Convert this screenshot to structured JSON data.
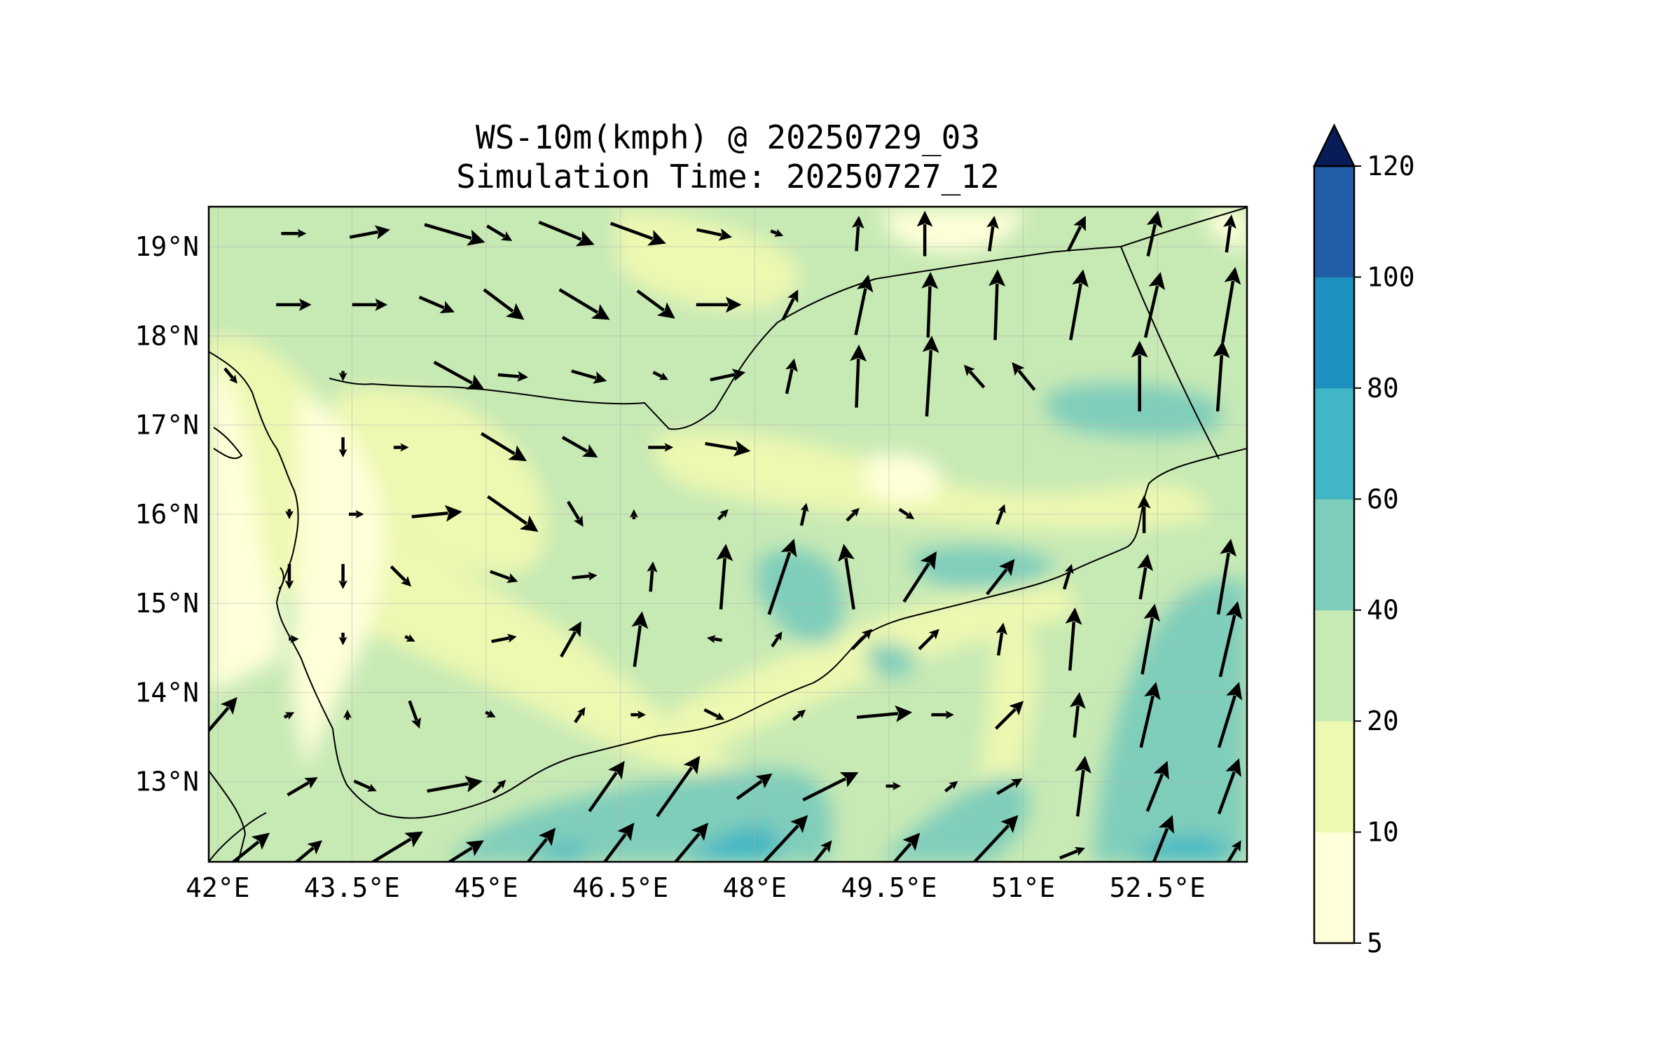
{
  "title": {
    "line1": "WS-10m(kmph) @ 20250729_03",
    "line2": "Simulation Time: 20250727_12"
  },
  "chart_data": {
    "type": "heatmap",
    "title": "WS-10m(kmph) @ 20250729_03",
    "subtitle": "Simulation Time: 20250727_12",
    "x_axis": {
      "range": [
        41.9,
        53.5
      ],
      "ticks": [
        {
          "value": 42,
          "label": "42°E"
        },
        {
          "value": 43.5,
          "label": "43.5°E"
        },
        {
          "value": 45,
          "label": "45°E"
        },
        {
          "value": 46.5,
          "label": "46.5°E"
        },
        {
          "value": 48,
          "label": "48°E"
        },
        {
          "value": 49.5,
          "label": "49.5°E"
        },
        {
          "value": 51,
          "label": "51°E"
        },
        {
          "value": 52.5,
          "label": "52.5°E"
        }
      ]
    },
    "y_axis": {
      "range": [
        12.1,
        19.45
      ],
      "ticks": [
        {
          "value": 13,
          "label": "13°N"
        },
        {
          "value": 14,
          "label": "14°N"
        },
        {
          "value": 15,
          "label": "15°N"
        },
        {
          "value": 16,
          "label": "16°N"
        },
        {
          "value": 17,
          "label": "17°N"
        },
        {
          "value": 18,
          "label": "18°N"
        },
        {
          "value": 19,
          "label": "19°N"
        }
      ]
    },
    "grid": true,
    "colorbar": {
      "placement": "right",
      "extend": "max",
      "levels": [
        5,
        10,
        20,
        40,
        60,
        80,
        100,
        120
      ],
      "labels": [
        "5",
        "10",
        "20",
        "40",
        "60",
        "80",
        "100",
        "120"
      ],
      "colors": [
        "#ffffd9",
        "#edf8b1",
        "#c7e9b4",
        "#7fcdbb",
        "#41b6c4",
        "#1d91c0",
        "#225ea8",
        "#253494"
      ],
      "extend_color": "#081d58"
    },
    "wind_vectors": {
      "units": "kmph",
      "arrow_color": "#000000",
      "rows": [
        {
          "lat": 19.15,
          "vectors": [
            {
              "lon": 42.85,
              "u": 10,
              "v": 0
            },
            {
              "lon": 43.7,
              "u": 16,
              "v": 3
            },
            {
              "lon": 44.65,
              "u": 24,
              "v": -7
            },
            {
              "lon": 45.15,
              "u": 10,
              "v": -6
            },
            {
              "lon": 45.9,
              "u": 22,
              "v": -9
            },
            {
              "lon": 46.7,
              "u": 22,
              "v": -8
            },
            {
              "lon": 47.55,
              "u": 14,
              "v": -3
            },
            {
              "lon": 48.25,
              "u": 5,
              "v": -2
            },
            {
              "lon": 49.15,
              "u": 1,
              "v": 14
            },
            {
              "lon": 49.9,
              "u": 0,
              "v": 18
            },
            {
              "lon": 50.65,
              "u": 2,
              "v": 14
            },
            {
              "lon": 51.6,
              "u": 7,
              "v": 14
            },
            {
              "lon": 52.45,
              "u": 4,
              "v": 18
            },
            {
              "lon": 53.3,
              "u": 2,
              "v": 15
            }
          ]
        },
        {
          "lat": 18.35,
          "vectors": [
            {
              "lon": 42.85,
              "u": 14,
              "v": 0
            },
            {
              "lon": 43.7,
              "u": 14,
              "v": 0
            },
            {
              "lon": 44.45,
              "u": 14,
              "v": -6
            },
            {
              "lon": 45.2,
              "u": 16,
              "v": -12
            },
            {
              "lon": 46.1,
              "u": 20,
              "v": -12
            },
            {
              "lon": 46.9,
              "u": 15,
              "v": -11
            },
            {
              "lon": 47.6,
              "u": 18,
              "v": 0
            },
            {
              "lon": 48.4,
              "u": 6,
              "v": 12
            },
            {
              "lon": 49.2,
              "u": 5,
              "v": 24
            },
            {
              "lon": 49.95,
              "u": 1,
              "v": 26
            },
            {
              "lon": 50.7,
              "u": 1,
              "v": 28
            },
            {
              "lon": 51.6,
              "u": 5,
              "v": 28
            },
            {
              "lon": 52.45,
              "u": 6,
              "v": 26
            },
            {
              "lon": 53.3,
              "u": 5,
              "v": 30
            }
          ]
        },
        {
          "lat": 17.55,
          "vectors": [
            {
              "lon": 42.15,
              "u": 5,
              "v": -6
            },
            {
              "lon": 43.4,
              "u": 0,
              "v": -4
            },
            {
              "lon": 44.7,
              "u": 20,
              "v": -11
            },
            {
              "lon": 45.3,
              "u": 12,
              "v": -1
            },
            {
              "lon": 46.15,
              "u": 14,
              "v": -4
            },
            {
              "lon": 46.95,
              "u": 6,
              "v": -3
            },
            {
              "lon": 47.7,
              "u": 14,
              "v": 3
            },
            {
              "lon": 48.4,
              "u": 3,
              "v": 14
            },
            {
              "lon": 49.15,
              "u": 1,
              "v": 25
            },
            {
              "lon": 49.95,
              "u": 2,
              "v": 32
            },
            {
              "lon": 50.45,
              "u": -8,
              "v": 9
            },
            {
              "lon": 51.0,
              "u": -9,
              "v": 11
            },
            {
              "lon": 52.3,
              "u": 0,
              "v": 28
            },
            {
              "lon": 53.2,
              "u": 2,
              "v": 28
            }
          ]
        },
        {
          "lat": 16.75,
          "vectors": [
            {
              "lon": 43.4,
              "u": 0,
              "v": -8
            },
            {
              "lon": 44.05,
              "u": 6,
              "v": 0
            },
            {
              "lon": 45.2,
              "u": 18,
              "v": -11
            },
            {
              "lon": 46.05,
              "u": 14,
              "v": -8
            },
            {
              "lon": 46.95,
              "u": 10,
              "v": 0
            },
            {
              "lon": 47.7,
              "u": 18,
              "v": -3
            }
          ]
        },
        {
          "lat": 16.0,
          "vectors": [
            {
              "lon": 42.8,
              "u": 0,
              "v": -4
            },
            {
              "lon": 43.55,
              "u": 6,
              "v": 0
            },
            {
              "lon": 44.45,
              "u": 20,
              "v": 2
            },
            {
              "lon": 45.3,
              "u": 20,
              "v": -14
            },
            {
              "lon": 46.0,
              "u": 6,
              "v": -10
            },
            {
              "lon": 46.65,
              "u": 0,
              "v": 4
            },
            {
              "lon": 47.65,
              "u": 4,
              "v": 4
            },
            {
              "lon": 48.55,
              "u": 2,
              "v": 9
            },
            {
              "lon": 49.1,
              "u": 5,
              "v": 5
            },
            {
              "lon": 49.7,
              "u": 6,
              "v": -4
            },
            {
              "lon": 50.75,
              "u": 3,
              "v": 8
            },
            {
              "lon": 52.35,
              "u": 0,
              "v": 15
            }
          ]
        },
        {
          "lat": 15.3,
          "vectors": [
            {
              "lon": 42.8,
              "u": 0,
              "v": -10
            },
            {
              "lon": 43.4,
              "u": 0,
              "v": -10
            },
            {
              "lon": 44.05,
              "u": 8,
              "v": -8
            },
            {
              "lon": 45.2,
              "u": 11,
              "v": -4
            },
            {
              "lon": 46.1,
              "u": 10,
              "v": 1
            },
            {
              "lon": 46.85,
              "u": 1,
              "v": 12
            },
            {
              "lon": 47.65,
              "u": 2,
              "v": 26
            },
            {
              "lon": 48.3,
              "u": 10,
              "v": 30
            },
            {
              "lon": 49.05,
              "u": -4,
              "v": 26
            },
            {
              "lon": 49.85,
              "u": 13,
              "v": 20
            },
            {
              "lon": 50.75,
              "u": 11,
              "v": 14
            },
            {
              "lon": 51.5,
              "u": 3,
              "v": 10
            },
            {
              "lon": 52.35,
              "u": 3,
              "v": 18
            },
            {
              "lon": 53.25,
              "u": 5,
              "v": 30
            }
          ]
        },
        {
          "lat": 14.6,
          "vectors": [
            {
              "lon": 42.85,
              "u": 4,
              "v": 0
            },
            {
              "lon": 43.4,
              "u": 0,
              "v": -5
            },
            {
              "lon": 44.15,
              "u": 4,
              "v": -2
            },
            {
              "lon": 45.2,
              "u": 10,
              "v": 2
            },
            {
              "lon": 45.95,
              "u": 8,
              "v": 14
            },
            {
              "lon": 46.7,
              "u": 3,
              "v": 22
            },
            {
              "lon": 47.55,
              "u": -6,
              "v": 1
            },
            {
              "lon": 48.25,
              "u": 4,
              "v": 6
            },
            {
              "lon": 49.2,
              "u": 8,
              "v": 8
            },
            {
              "lon": 49.95,
              "u": 8,
              "v": 8
            },
            {
              "lon": 50.75,
              "u": 2,
              "v": 13
            },
            {
              "lon": 51.55,
              "u": 2,
              "v": 25
            },
            {
              "lon": 52.4,
              "u": 5,
              "v": 28
            },
            {
              "lon": 53.3,
              "u": 7,
              "v": 30
            }
          ]
        },
        {
          "lat": 13.75,
          "vectors": [
            {
              "lon": 42.05,
              "u": 12,
              "v": 14
            },
            {
              "lon": 42.8,
              "u": 4,
              "v": 2
            },
            {
              "lon": 43.45,
              "u": 0,
              "v": 4
            },
            {
              "lon": 44.2,
              "u": 4,
              "v": -11
            },
            {
              "lon": 45.05,
              "u": 4,
              "v": -2
            },
            {
              "lon": 46.05,
              "u": 4,
              "v": 6
            },
            {
              "lon": 46.7,
              "u": 6,
              "v": 0
            },
            {
              "lon": 47.55,
              "u": 8,
              "v": -4
            },
            {
              "lon": 48.5,
              "u": 5,
              "v": 4
            },
            {
              "lon": 49.45,
              "u": 22,
              "v": 2
            },
            {
              "lon": 50.1,
              "u": 9,
              "v": 0
            },
            {
              "lon": 50.85,
              "u": 11,
              "v": 11
            },
            {
              "lon": 51.6,
              "u": 2,
              "v": 18
            },
            {
              "lon": 52.4,
              "u": 6,
              "v": 26
            },
            {
              "lon": 53.3,
              "u": 8,
              "v": 26
            }
          ]
        },
        {
          "lat": 12.95,
          "vectors": [
            {
              "lon": 42.95,
              "u": 12,
              "v": 7
            },
            {
              "lon": 43.65,
              "u": 9,
              "v": -4
            },
            {
              "lon": 44.65,
              "u": 22,
              "v": 4
            },
            {
              "lon": 45.15,
              "u": 5,
              "v": 5
            },
            {
              "lon": 46.35,
              "u": 14,
              "v": 20
            },
            {
              "lon": 47.15,
              "u": 17,
              "v": 24
            },
            {
              "lon": 48.0,
              "u": 14,
              "v": 10
            },
            {
              "lon": 48.85,
              "u": 22,
              "v": 11
            },
            {
              "lon": 49.55,
              "u": 6,
              "v": 0
            },
            {
              "lon": 50.2,
              "u": 5,
              "v": 4
            },
            {
              "lon": 50.85,
              "u": 10,
              "v": 6
            },
            {
              "lon": 51.65,
              "u": 3,
              "v": 24
            },
            {
              "lon": 52.5,
              "u": 8,
              "v": 20
            },
            {
              "lon": 53.3,
              "u": 8,
              "v": 22
            }
          ]
        },
        {
          "lat": 12.2,
          "vectors": [
            {
              "lon": 42.3,
              "u": 20,
              "v": 16
            },
            {
              "lon": 43.0,
              "u": 12,
              "v": 10
            },
            {
              "lon": 43.9,
              "u": 28,
              "v": 17
            },
            {
              "lon": 44.75,
              "u": 16,
              "v": 10
            },
            {
              "lon": 45.55,
              "u": 16,
              "v": 20
            },
            {
              "lon": 46.4,
              "u": 18,
              "v": 24
            },
            {
              "lon": 47.2,
              "u": 20,
              "v": 24
            },
            {
              "lon": 48.2,
              "u": 28,
              "v": 30
            },
            {
              "lon": 48.75,
              "u": 8,
              "v": 10
            },
            {
              "lon": 49.65,
              "u": 14,
              "v": 16
            },
            {
              "lon": 50.55,
              "u": 28,
              "v": 30
            },
            {
              "lon": 51.55,
              "u": 10,
              "v": 4
            },
            {
              "lon": 52.5,
              "u": 12,
              "v": 30
            },
            {
              "lon": 53.35,
              "u": 6,
              "v": 10
            }
          ]
        }
      ]
    }
  }
}
